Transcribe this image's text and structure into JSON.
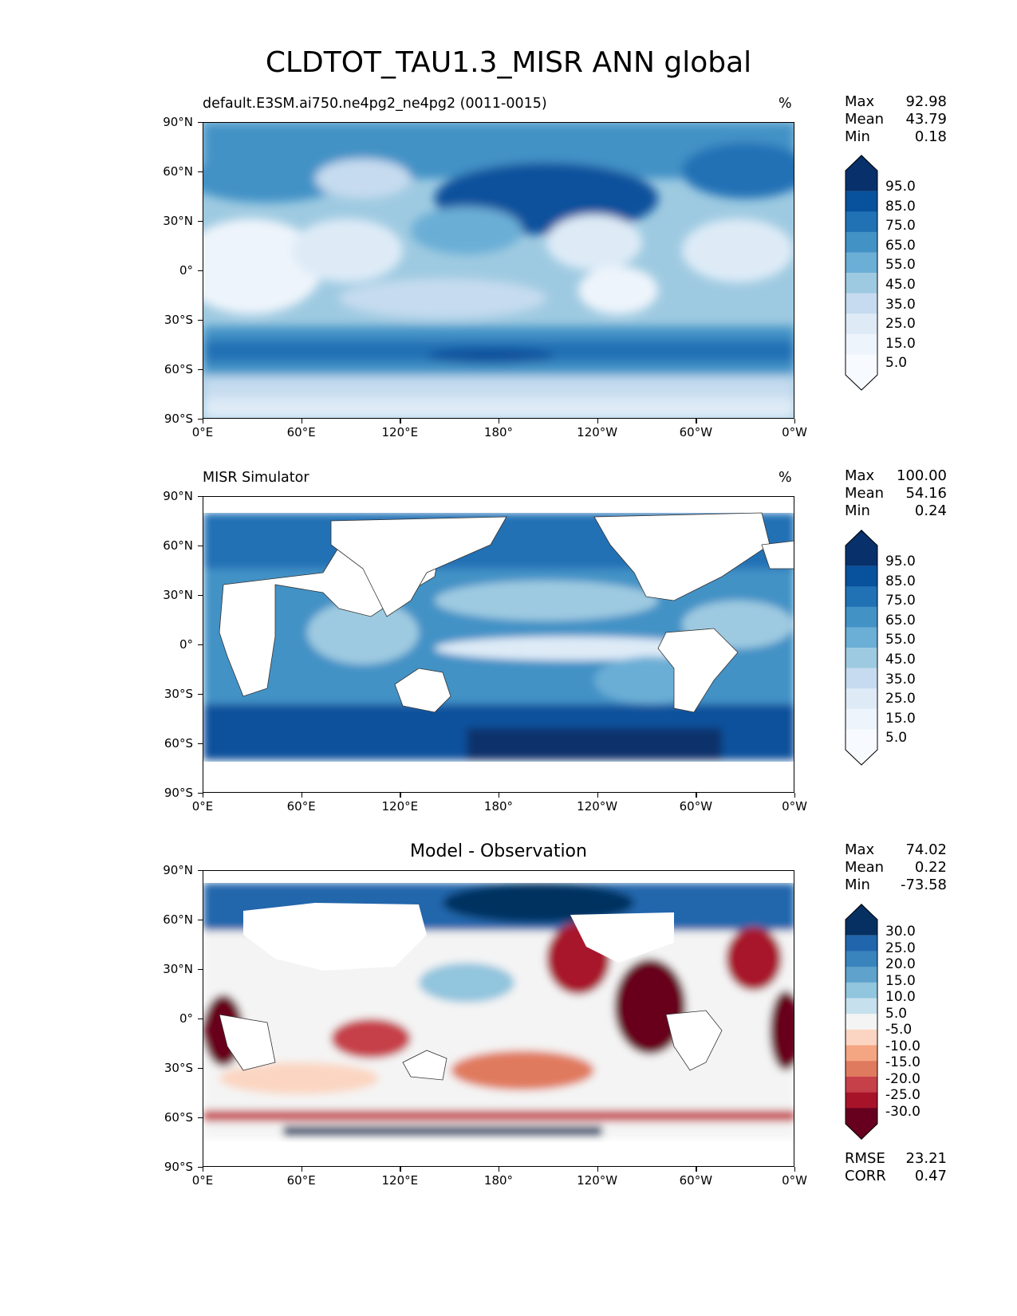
{
  "figure": {
    "title": "CLDTOT_TAU1.3_MISR ANN global"
  },
  "axes": {
    "y_ticks": [
      "90°N",
      "60°N",
      "30°N",
      "0°",
      "30°S",
      "60°S",
      "90°S"
    ],
    "x_ticks": [
      "0°E",
      "60°E",
      "120°E",
      "180°",
      "120°W",
      "60°W",
      "0°W"
    ]
  },
  "panels": [
    {
      "title": "default.E3SM.ai750.ne4pg2_ne4pg2 (0011-0015)",
      "units": "%",
      "stats": [
        {
          "label": "Max",
          "value": "92.98"
        },
        {
          "label": "Mean",
          "value": "43.79"
        },
        {
          "label": "Min",
          "value": "0.18"
        }
      ],
      "colorbar": {
        "labels": [
          "95.0",
          "85.0",
          "75.0",
          "65.0",
          "55.0",
          "45.0",
          "35.0",
          "25.0",
          "15.0",
          "5.0"
        ],
        "colors": [
          "#08306b",
          "#08519c",
          "#2171b5",
          "#4292c6",
          "#6baed6",
          "#9ecae1",
          "#c6dbef",
          "#deebf7",
          "#eef4fb",
          "#f7fbff"
        ]
      }
    },
    {
      "title": "MISR Simulator",
      "units": "%",
      "stats": [
        {
          "label": "Max",
          "value": "100.00"
        },
        {
          "label": "Mean",
          "value": "54.16"
        },
        {
          "label": "Min",
          "value": "0.24"
        }
      ],
      "colorbar": {
        "labels": [
          "95.0",
          "85.0",
          "75.0",
          "65.0",
          "55.0",
          "45.0",
          "35.0",
          "25.0",
          "15.0",
          "5.0"
        ],
        "colors": [
          "#08306b",
          "#08519c",
          "#2171b5",
          "#4292c6",
          "#6baed6",
          "#9ecae1",
          "#c6dbef",
          "#deebf7",
          "#eef4fb",
          "#f7fbff"
        ]
      }
    },
    {
      "title": "Model - Observation",
      "units": "",
      "stats": [
        {
          "label": "Max",
          "value": "74.02"
        },
        {
          "label": "Mean",
          "value": "0.22"
        },
        {
          "label": "Min",
          "value": "-73.58"
        }
      ],
      "extra_stats": [
        {
          "label": "RMSE",
          "value": "23.21"
        },
        {
          "label": "CORR",
          "value": "0.47"
        }
      ],
      "colorbar": {
        "labels": [
          "30.0",
          "25.0",
          "20.0",
          "15.0",
          "10.0",
          "5.0",
          "-5.0",
          "-10.0",
          "-15.0",
          "-20.0",
          "-25.0",
          "-30.0"
        ],
        "colors": [
          "#053061",
          "#2166ac",
          "#3a84bd",
          "#5fa2cb",
          "#92c5de",
          "#c7e0ed",
          "#f4f4f4",
          "#fbd5c1",
          "#f4a582",
          "#e07a5f",
          "#c6404a",
          "#a7142a",
          "#67001f"
        ]
      }
    }
  ]
}
